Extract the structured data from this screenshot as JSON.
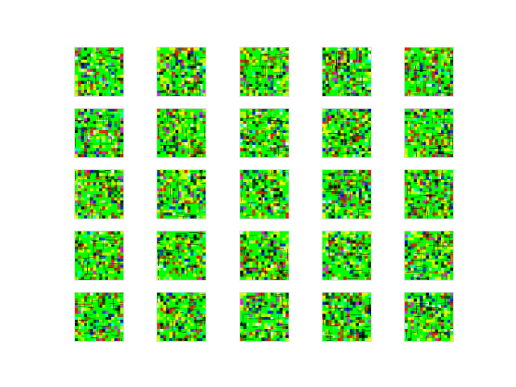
{
  "figure": {
    "rows": 5,
    "cols": 5,
    "tile_count": 25,
    "background": "#ffffff",
    "palette": [
      "#00ff00",
      "#ffff00",
      "#ff0000",
      "#000000",
      "#0000ff",
      "#00ffff",
      "#ff00ff",
      "#ffffff"
    ],
    "tile_icon": "noise-image-icon"
  }
}
